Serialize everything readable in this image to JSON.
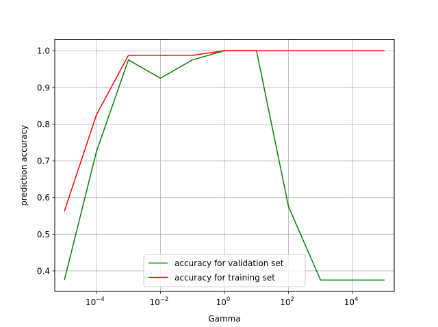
{
  "chart_data": {
    "type": "line",
    "x_scale": "log",
    "xlabel": "Gamma",
    "ylabel": "prediction accuracy",
    "x": [
      "1e-05",
      "0.0001",
      "0.001",
      "0.01",
      "0.1",
      "1",
      "10",
      "100",
      "1000",
      "10000",
      "100000"
    ],
    "xlim": [
      "5e-06",
      "2e+05"
    ],
    "ylim": [
      0.344,
      1.031
    ],
    "x_ticks": [
      {
        "value": "0.0001",
        "base": "10",
        "exp": "−4"
      },
      {
        "value": "0.01",
        "base": "10",
        "exp": "−2"
      },
      {
        "value": "1",
        "base": "10",
        "exp": "0"
      },
      {
        "value": "100",
        "base": "10",
        "exp": "2"
      },
      {
        "value": "10000",
        "base": "10",
        "exp": "4"
      }
    ],
    "y_ticks": [
      "0.4",
      "0.5",
      "0.6",
      "0.7",
      "0.8",
      "0.9",
      "1.0"
    ],
    "grid": true,
    "legend_position": "lower center",
    "series": [
      {
        "name": "accuracy for validation set",
        "color": "#008000",
        "values": [
          0.375,
          0.725,
          0.975,
          0.925,
          0.975,
          1.0,
          1.0,
          0.575,
          0.375,
          0.375,
          0.375
        ]
      },
      {
        "name": "accuracy for training set",
        "color": "#ff0000",
        "values": [
          0.5625,
          0.825,
          0.9875,
          0.9875,
          0.9875,
          1.0,
          1.0,
          1.0,
          1.0,
          1.0,
          1.0
        ]
      }
    ]
  }
}
